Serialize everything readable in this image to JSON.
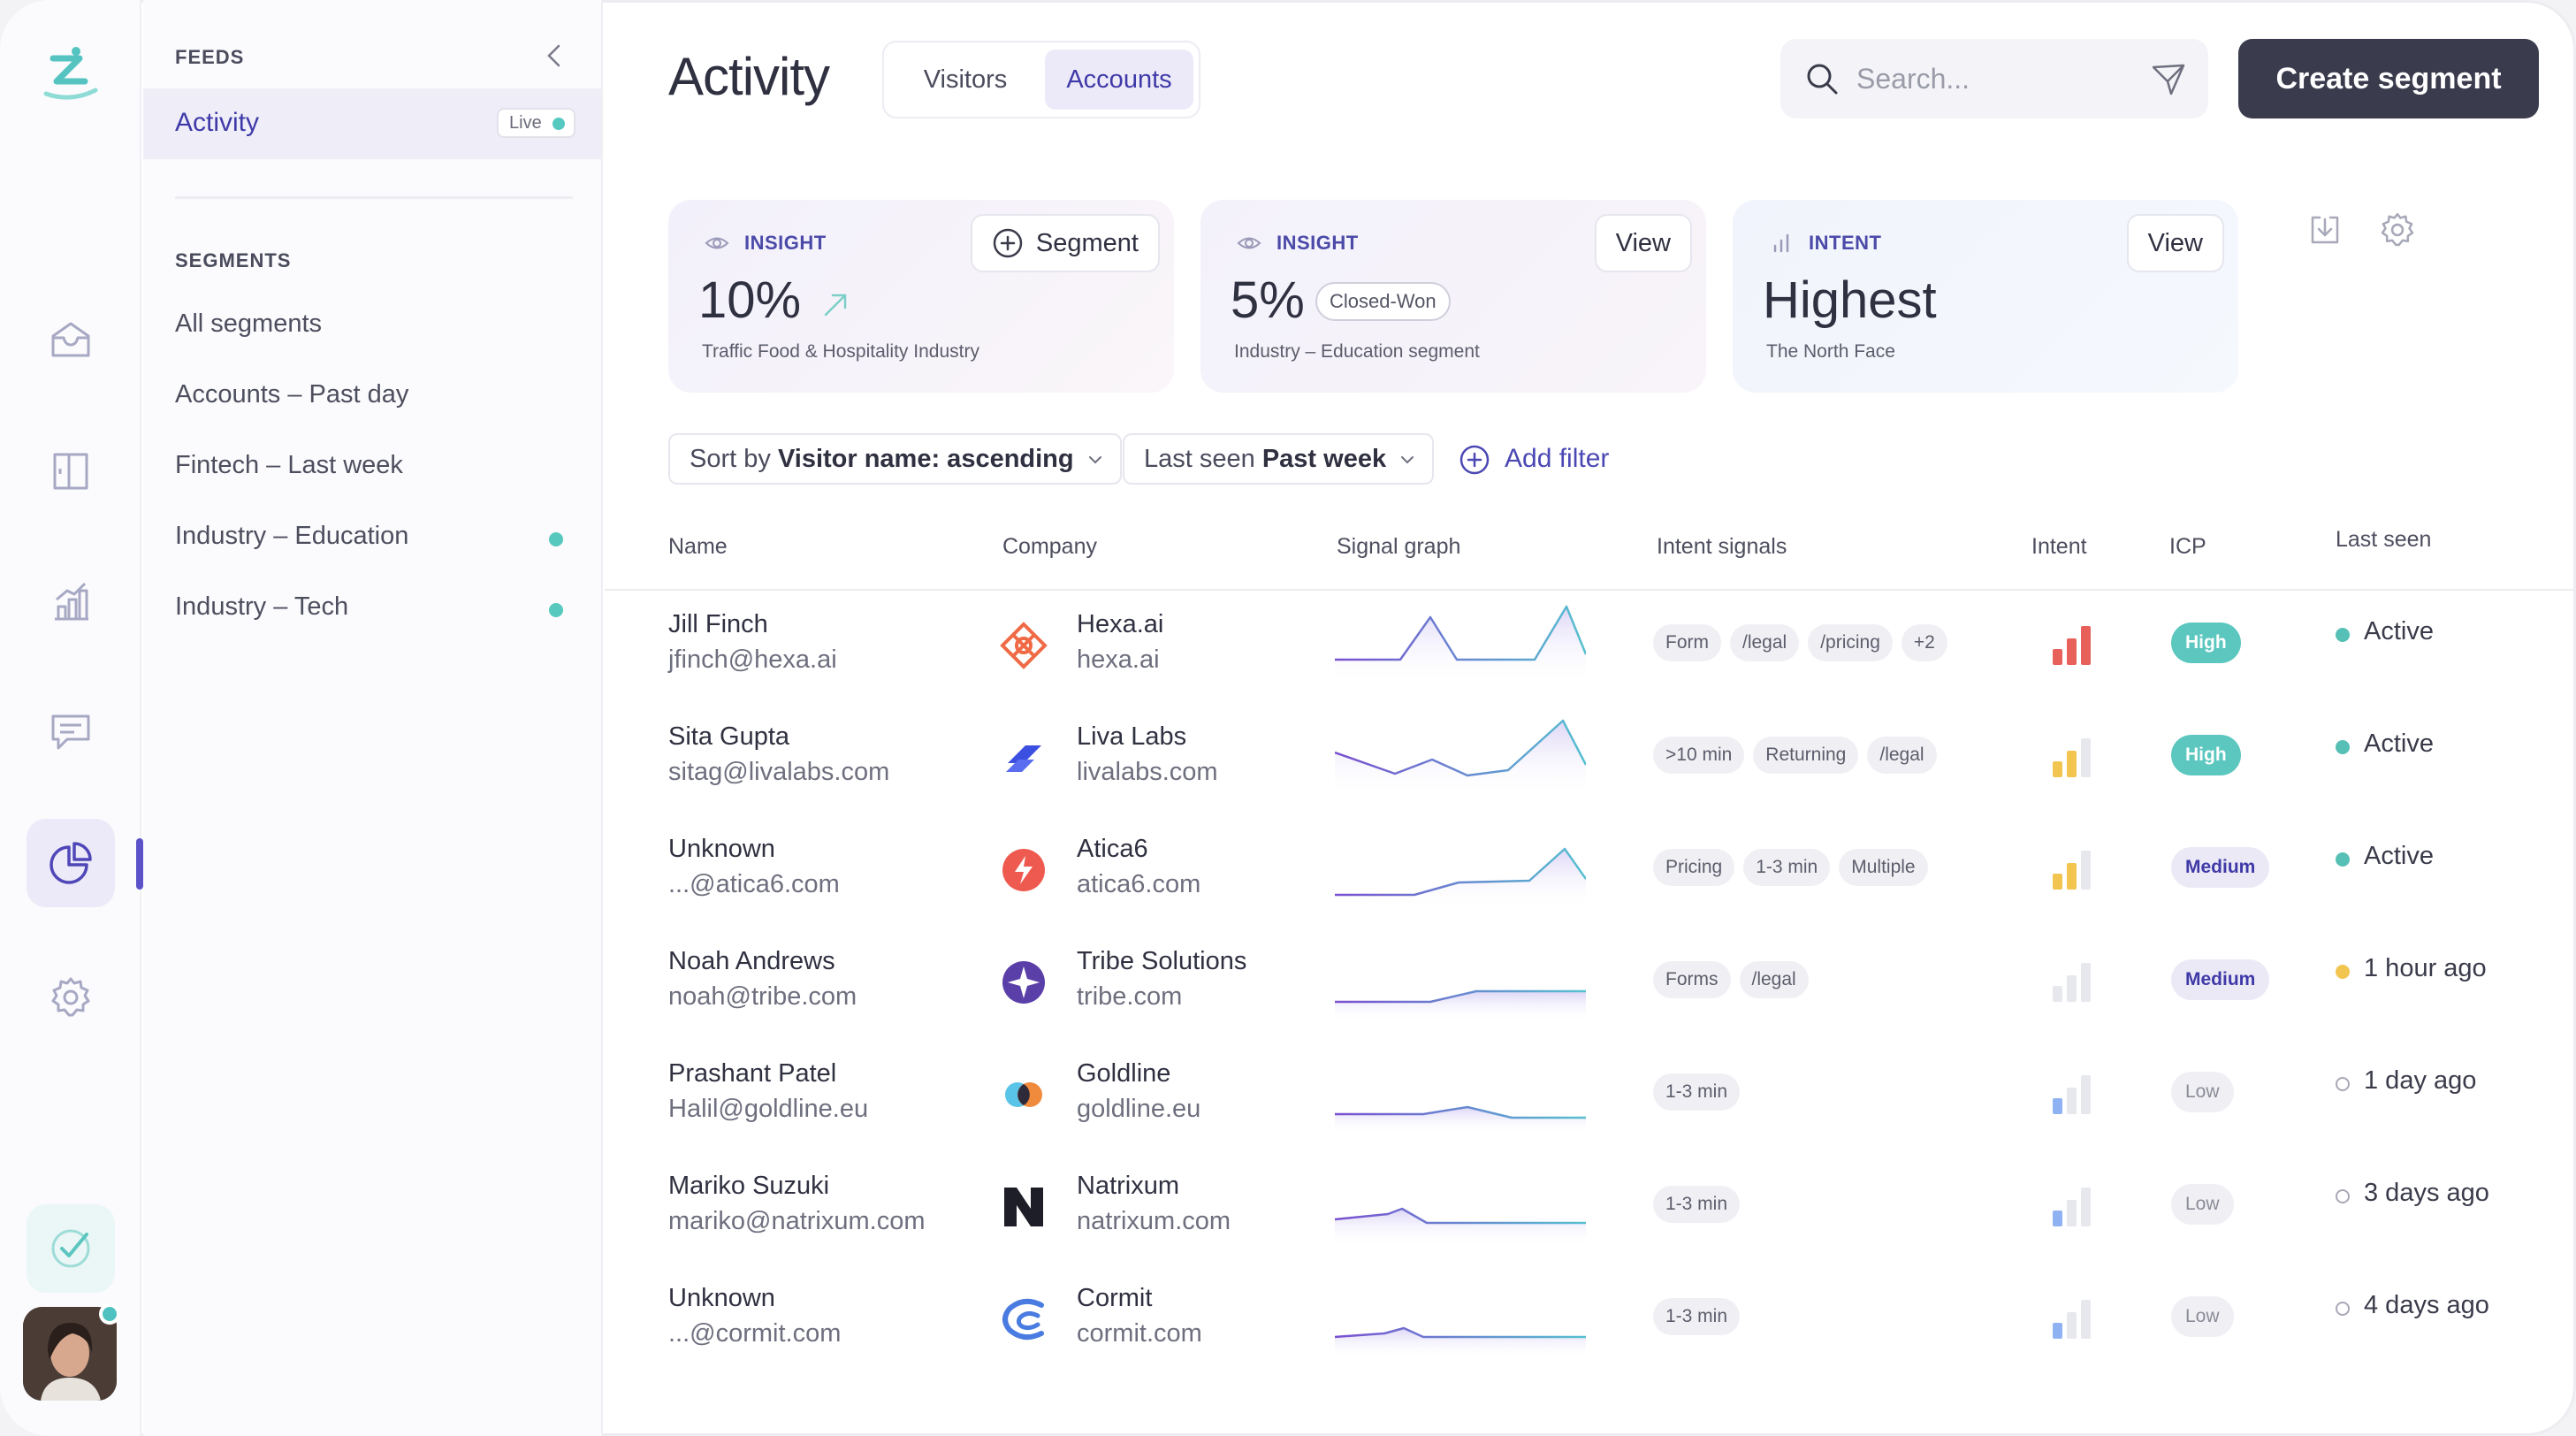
{
  "feeds": {
    "section_label": "FEEDS",
    "active_item": {
      "label": "Activity",
      "badge": "Live"
    }
  },
  "segments": {
    "section_label": "SEGMENTS",
    "items": [
      {
        "label": "All segments",
        "dot": false
      },
      {
        "label": "Accounts – Past day",
        "dot": false
      },
      {
        "label": "Fintech – Last week",
        "dot": false
      },
      {
        "label": "Industry – Education",
        "dot": true
      },
      {
        "label": "Industry – Tech",
        "dot": true
      }
    ]
  },
  "nav_icons": [
    "logo-icon",
    "inbox-icon",
    "book-icon",
    "chart-icon",
    "chat-icon",
    "pie-chart-icon",
    "gear-icon",
    "checkmark-icon"
  ],
  "header": {
    "title": "Activity",
    "tabs": [
      {
        "label": "Visitors",
        "selected": false
      },
      {
        "label": "Accounts",
        "selected": true
      }
    ],
    "search_placeholder": "Search...",
    "create_label": "Create segment"
  },
  "cards": [
    {
      "kind": "INSIGHT",
      "value": "10%",
      "subtitle": "Traffic Food & Hospitality Industry",
      "button": "Segment"
    },
    {
      "kind": "INSIGHT",
      "value": "5%",
      "pill": "Closed-Won",
      "subtitle": "Industry – Education segment",
      "button": "View"
    },
    {
      "kind": "INTENT",
      "value": "Highest",
      "subtitle": "The North Face",
      "button": "View"
    }
  ],
  "filters": {
    "sort": {
      "prefix": "Sort by ",
      "value": "Visitor name: ascending"
    },
    "last_seen": {
      "prefix": "Last seen ",
      "value": "Past week"
    },
    "add_filter": "Add filter"
  },
  "table": {
    "columns": [
      "Name",
      "Company",
      "Signal graph",
      "Intent signals",
      "Intent",
      "ICP",
      "Last seen"
    ],
    "rows": [
      {
        "name": "Jill Finch",
        "email": "jfinch@hexa.ai",
        "company": "Hexa.ai",
        "domain": "hexa.ai",
        "signals": [
          "Form",
          "/legal",
          "/pricing",
          "+2"
        ],
        "intent_level": 3,
        "icp": "High",
        "last_seen": "Active",
        "status": "active"
      },
      {
        "name": "Sita Gupta",
        "email": "sitag@livalabs.com",
        "company": "Liva Labs",
        "domain": "livalabs.com",
        "signals": [
          ">10 min",
          "Returning",
          "/legal"
        ],
        "intent_level": 2,
        "icp": "High",
        "last_seen": "Active",
        "status": "active"
      },
      {
        "name": "Unknown",
        "email": "...@atica6.com",
        "company": "Atica6",
        "domain": "atica6.com",
        "signals": [
          "Pricing",
          "1-3 min",
          "Multiple"
        ],
        "intent_level": 2,
        "icp": "Medium",
        "last_seen": "Active",
        "status": "active"
      },
      {
        "name": "Noah Andrews",
        "email": "noah@tribe.com",
        "company": "Tribe Solutions",
        "domain": "tribe.com",
        "signals": [
          "Forms",
          "/legal"
        ],
        "intent_level": 0,
        "icp": "Medium",
        "last_seen": "1 hour ago",
        "status": "recent"
      },
      {
        "name": "Prashant Patel",
        "email": "Halil@goldline.eu",
        "company": "Goldline",
        "domain": "goldline.eu",
        "signals": [
          "1-3 min"
        ],
        "intent_level": 1,
        "icp": "Low",
        "last_seen": "1 day ago",
        "status": "old"
      },
      {
        "name": "Mariko Suzuki",
        "email": "mariko@natrixum.com",
        "company": "Natrixum",
        "domain": "natrixum.com",
        "signals": [
          "1-3 min"
        ],
        "intent_level": 1,
        "icp": "Low",
        "last_seen": "3 days ago",
        "status": "old"
      },
      {
        "name": "Unknown",
        "email": "...@cormit.com",
        "company": "Cormit",
        "domain": "cormit.com",
        "signals": [
          "1-3 min"
        ],
        "intent_level": 1,
        "icp": "Low",
        "last_seen": "4 days ago",
        "status": "old"
      }
    ]
  },
  "colors": {
    "accent": "#3f3aa8",
    "teal": "#56c0b6",
    "dark_button": "#3a3b4d"
  }
}
